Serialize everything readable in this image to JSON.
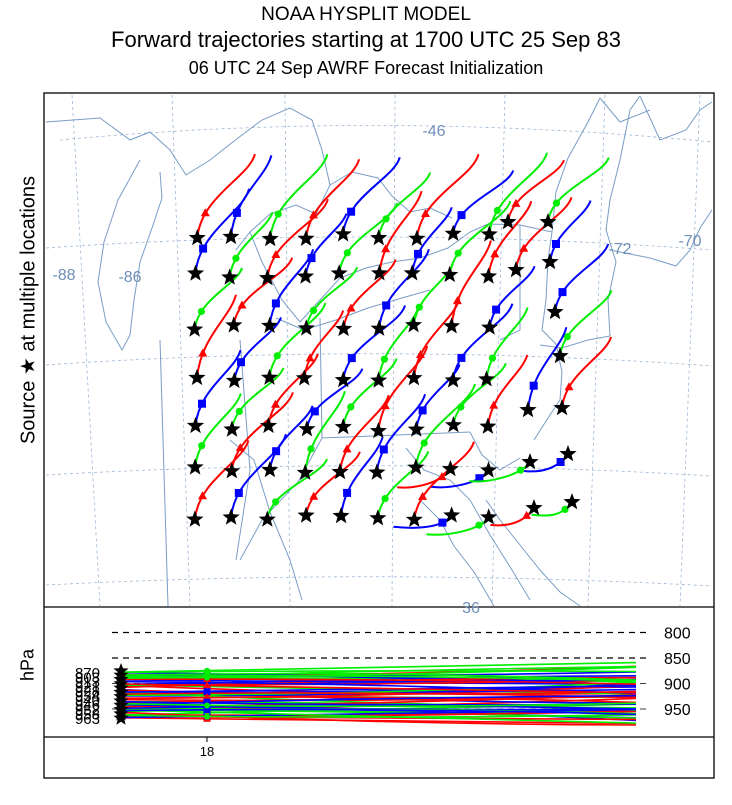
{
  "header": {
    "line1": "NOAA HYSPLIT MODEL",
    "line2": "Forward trajectories starting at 1700 UTC 25 Sep 83",
    "line3": "06 UTC 24 Sep     AWRF  Forecast Initialization"
  },
  "map": {
    "y_axis_label": "Source ★ at multiple locations",
    "longitude_labels": [
      "-88",
      "-86",
      "-72",
      "-70",
      "-46"
    ],
    "latitude_labels": [
      "36"
    ],
    "colors": {
      "border": "#7a9cc6",
      "grid": "#9db7d6",
      "label": "#6f8fb8"
    }
  },
  "vertical_panel": {
    "y_axis_label": "hPa",
    "pressure_levels": [
      "800",
      "850",
      "900",
      "950"
    ],
    "time_tick": "18",
    "source_heights": [
      "870",
      "963"
    ]
  },
  "series_colors": {
    "red": "#ff0000",
    "blue": "#0000ff",
    "green": "#00ee00"
  }
}
